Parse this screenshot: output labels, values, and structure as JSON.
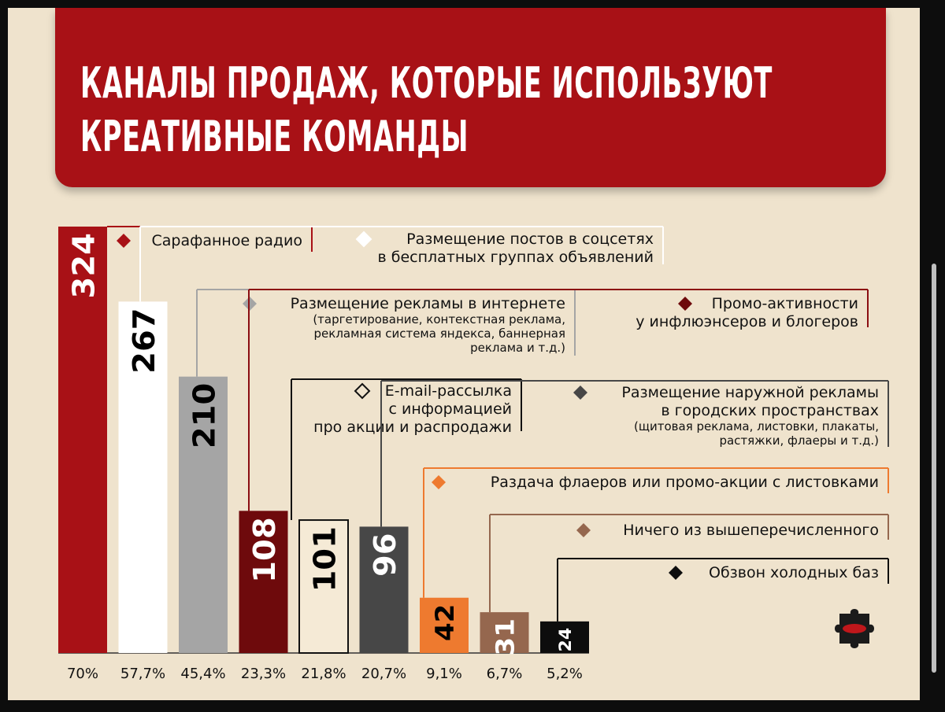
{
  "title_lines": [
    "КАНАЛЫ ПРОДАЖ, КОТОРЫЕ ИСПОЛЬЗУЮТ",
    "КРЕАТИВНЫЕ КОМАНДЫ"
  ],
  "chart_data": {
    "type": "bar",
    "title": "КАНАЛЫ ПРОДАЖ, КОТОРЫЕ ИСПОЛЬЗУЮТ КРЕАТИВНЫЕ КОМАНДЫ",
    "ylim": [
      0,
      324
    ],
    "categories": [
      "Сарафанное радио",
      "Размещение постов в соцсетях в бесплатных группах объявлений",
      "Размещение рекламы в интернете",
      "Промо-активности у инфлюэнсеров и блогеров",
      "E-mail-рассылка с информацией про акции и распродажи",
      "Размещение наружной рекламы в городских пространствах",
      "Раздача флаеров или промо-акции с листовками",
      "Ничего из вышеперечисленного",
      "Обзвон холодных баз"
    ],
    "series": [
      {
        "values": [
          324,
          267,
          210,
          108,
          101,
          96,
          42,
          31,
          24
        ],
        "percent_labels": [
          "70%",
          "57,7%",
          "45,4%",
          "23,3%",
          "21,8%",
          "20,7%",
          "9,1%",
          "6,7%",
          "5,2%"
        ]
      }
    ],
    "items": [
      {
        "value_label": "324",
        "pct": "70%",
        "label_lines": [
          "Сарафанное радио"
        ],
        "note_lines": [],
        "color": "#a81116",
        "border": "#a81116",
        "text_color": "#ffffff",
        "marker": "#a81116",
        "line": "#a81116"
      },
      {
        "value_label": "267",
        "pct": "57,7%",
        "label_lines": [
          "Размещение постов в соцсетях",
          "в бесплатных группах объявлений"
        ],
        "note_lines": [],
        "color": "#ffffff",
        "border": "#ffffff",
        "text_color": "#000000",
        "marker": "#ffffff",
        "line": "#ffffff"
      },
      {
        "value_label": "210",
        "pct": "45,4%",
        "label_lines": [
          "Размещение рекламы в интернете"
        ],
        "note_lines": [
          "(таргетирование, контекстная реклама,",
          "рекламная система яндекса, баннерная",
          "реклама и т.д.)"
        ],
        "color": "#a5a5a5",
        "border": "#a5a5a5",
        "text_color": "#000000",
        "marker": "#a5a5a5",
        "line": "#a5a5a5"
      },
      {
        "value_label": "108",
        "pct": "23,3%",
        "label_lines": [
          "Промо-активности",
          "у инфлюэнсеров и блогеров"
        ],
        "note_lines": [],
        "color": "#6e0a0c",
        "border": "#6e0a0c",
        "text_color": "#ffffff",
        "marker": "#6e0a0c",
        "line": "#8b0e12"
      },
      {
        "value_label": "101",
        "pct": "21,8%",
        "label_lines": [
          "E-mail-рассылка",
          "с информацией",
          "про акции и распродажи"
        ],
        "note_lines": [],
        "color": "#f5ead6",
        "border": "#111111",
        "text_color": "#000000",
        "marker": "outline",
        "line": "#111111"
      },
      {
        "value_label": "96",
        "pct": "20,7%",
        "label_lines": [
          "Размещение наружной рекламы",
          "в городских пространствах"
        ],
        "note_lines": [
          "(щитовая реклама, листовки, плакаты,",
          "растяжки, флаеры и т.д.)"
        ],
        "color": "#474747",
        "border": "#474747",
        "text_color": "#ffffff",
        "marker": "#474747",
        "line": "#474747"
      },
      {
        "value_label": "42",
        "pct": "9,1%",
        "label_lines": [
          "Раздача флаеров или промо-акции с листовками"
        ],
        "note_lines": [],
        "color": "#ee7a2f",
        "border": "#ee7a2f",
        "text_color": "#000000",
        "marker": "#ee7a2f",
        "line": "#ee7a2f"
      },
      {
        "value_label": "31",
        "pct": "6,7%",
        "label_lines": [
          "Ничего из вышеперечисленного"
        ],
        "note_lines": [],
        "color": "#95674e",
        "border": "#95674e",
        "text_color": "#ffffff",
        "marker": "#95674e",
        "line": "#95674e"
      },
      {
        "value_label": "24",
        "pct": "5,2%",
        "label_lines": [
          "Обзвон холодных баз"
        ],
        "note_lines": [],
        "color": "#0d0d0d",
        "border": "#0d0d0d",
        "text_color": "#ffffff",
        "marker": "#0d0d0d",
        "line": "#0d0d0d"
      }
    ]
  },
  "colors": {
    "brand_red": "#a81116",
    "background": "#efe3cd",
    "logo": "#1b1b1b",
    "logo_lips": "#c0171b"
  },
  "icons": [
    "diamond-marker-icon",
    "puzzle-lips-logo-icon"
  ]
}
